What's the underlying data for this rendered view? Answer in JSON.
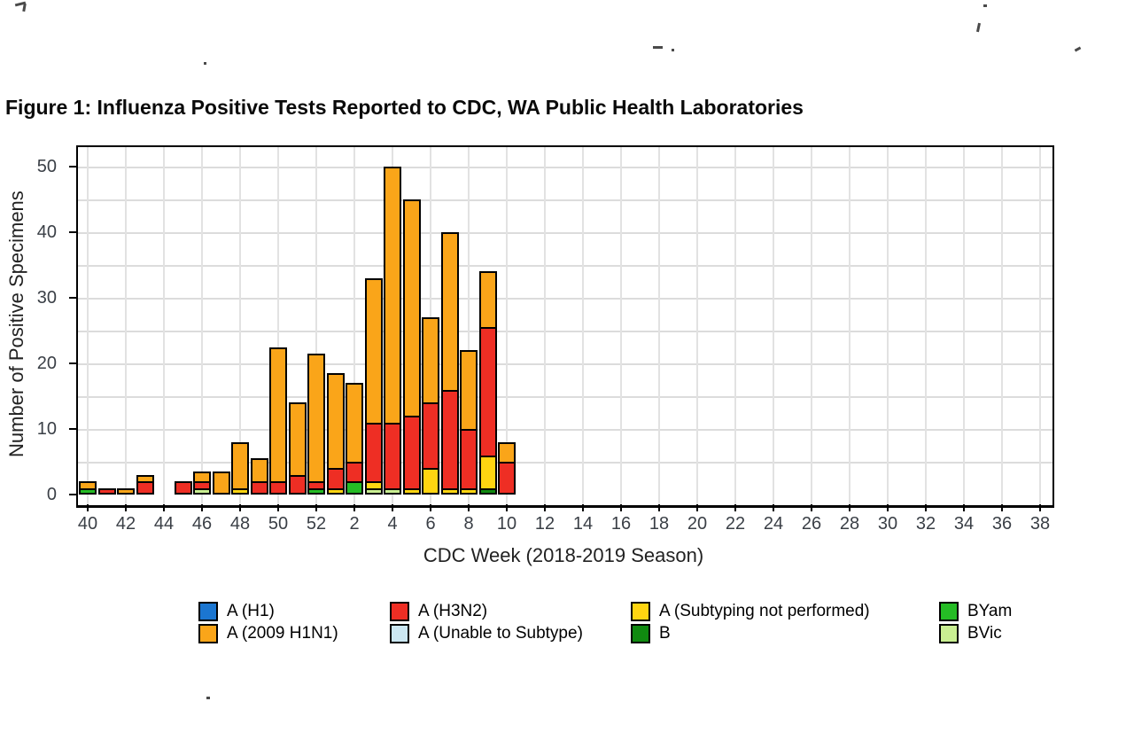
{
  "title": "Figure 1: Influenza Positive Tests Reported to CDC, WA Public Health Laboratories",
  "y_axis": {
    "label": "Number of Positive Specimens",
    "ticks": [
      "0",
      "10",
      "20",
      "30",
      "40",
      "50"
    ]
  },
  "x_axis": {
    "label": "CDC Week (2018-2019 Season)",
    "tick_labels": [
      "40",
      "42",
      "44",
      "46",
      "48",
      "50",
      "52",
      "2",
      "4",
      "6",
      "8",
      "10",
      "12",
      "14",
      "16",
      "18",
      "20",
      "22",
      "24",
      "26",
      "28",
      "30",
      "32",
      "34",
      "36",
      "38"
    ]
  },
  "legend": {
    "columns": [
      {
        "items": [
          {
            "label": "A (H1)",
            "color": "#1b76d1"
          },
          {
            "label": "A (2009 H1N1)",
            "color": "#faa519"
          }
        ]
      },
      {
        "items": [
          {
            "label": "A (H3N2)",
            "color": "#ee2e24"
          },
          {
            "label": "A (Unable to Subtype)",
            "color": "#cbe7f2"
          }
        ]
      },
      {
        "items": [
          {
            "label": "A (Subtyping not performed)",
            "color": "#ffd511"
          },
          {
            "label": "B",
            "color": "#108a10"
          }
        ]
      },
      {
        "items": [
          {
            "label": "BYam",
            "color": "#25bc25"
          },
          {
            "label": "BVic",
            "color": "#c9ef92"
          }
        ]
      }
    ]
  },
  "chart_data": {
    "type": "bar",
    "stacked": true,
    "title": "Figure 1: Influenza Positive Tests Reported to CDC, WA Public Health Laboratories",
    "xlabel": "CDC Week (2018-2019 Season)",
    "ylabel": "Number of Positive Specimens",
    "ylim": [
      0,
      50
    ],
    "grid": true,
    "legend_position": "bottom",
    "week_slots": [
      "40",
      "41",
      "42",
      "43",
      "44",
      "45",
      "46",
      "47",
      "48",
      "49",
      "50",
      "51",
      "52",
      "1",
      "2",
      "3",
      "4",
      "5",
      "6",
      "7",
      "8",
      "9",
      "10",
      "11",
      "12",
      "13",
      "14",
      "15",
      "16",
      "17",
      "18",
      "19",
      "20",
      "21",
      "22",
      "23",
      "24",
      "25",
      "26",
      "27",
      "28",
      "29",
      "30",
      "31",
      "32",
      "33",
      "34",
      "35",
      "36",
      "37",
      "38"
    ],
    "series_colors": {
      "A (H1)": "#1b76d1",
      "A (2009 H1N1)": "#faa519",
      "A (H3N2)": "#ee2e24",
      "A (Unable to Subtype)": "#cbe7f2",
      "A (Subtyping not performed)": "#ffd511",
      "B": "#108a10",
      "BYam": "#25bc25",
      "BVic": "#c9ef92"
    },
    "bars": [
      {
        "week": "40",
        "segments": [
          [
            "BYam",
            1
          ],
          [
            "A (2009 H1N1)",
            1
          ]
        ]
      },
      {
        "week": "41",
        "segments": [
          [
            "A (H3N2)",
            1
          ]
        ]
      },
      {
        "week": "42",
        "segments": [
          [
            "A (2009 H1N1)",
            1
          ]
        ]
      },
      {
        "week": "43",
        "segments": [
          [
            "A (H3N2)",
            2
          ],
          [
            "A (2009 H1N1)",
            1
          ]
        ]
      },
      {
        "week": "45",
        "segments": [
          [
            "A (H3N2)",
            2
          ]
        ]
      },
      {
        "week": "46",
        "segments": [
          [
            "BVic",
            1
          ],
          [
            "A (H3N2)",
            1
          ],
          [
            "A (2009 H1N1)",
            1.5
          ]
        ]
      },
      {
        "week": "47",
        "segments": [
          [
            "A (2009 H1N1)",
            3.5
          ]
        ]
      },
      {
        "week": "48",
        "segments": [
          [
            "A (Subtyping not performed)",
            1
          ],
          [
            "A (2009 H1N1)",
            7
          ]
        ]
      },
      {
        "week": "49",
        "segments": [
          [
            "A (H3N2)",
            2
          ],
          [
            "A (2009 H1N1)",
            3.5
          ]
        ]
      },
      {
        "week": "50",
        "segments": [
          [
            "A (H3N2)",
            2
          ],
          [
            "A (2009 H1N1)",
            20.5
          ]
        ]
      },
      {
        "week": "51",
        "segments": [
          [
            "A (H3N2)",
            3
          ],
          [
            "A (2009 H1N1)",
            11
          ]
        ]
      },
      {
        "week": "52",
        "segments": [
          [
            "BYam",
            1
          ],
          [
            "A (H3N2)",
            1
          ],
          [
            "A (2009 H1N1)",
            19.5
          ]
        ]
      },
      {
        "week": "1",
        "segments": [
          [
            "A (Subtyping not performed)",
            1
          ],
          [
            "A (H3N2)",
            3
          ],
          [
            "A (2009 H1N1)",
            14.5
          ]
        ]
      },
      {
        "week": "2",
        "segments": [
          [
            "BYam",
            2
          ],
          [
            "A (H3N2)",
            3
          ],
          [
            "A (2009 H1N1)",
            12
          ]
        ]
      },
      {
        "week": "3",
        "segments": [
          [
            "BVic",
            1
          ],
          [
            "A (Subtyping not performed)",
            1
          ],
          [
            "A (H3N2)",
            9
          ],
          [
            "A (2009 H1N1)",
            22
          ]
        ]
      },
      {
        "week": "4",
        "segments": [
          [
            "BVic",
            1
          ],
          [
            "A (H3N2)",
            10
          ],
          [
            "A (2009 H1N1)",
            39
          ]
        ]
      },
      {
        "week": "5",
        "segments": [
          [
            "A (Subtyping not performed)",
            1
          ],
          [
            "A (H3N2)",
            11
          ],
          [
            "A (2009 H1N1)",
            33
          ]
        ]
      },
      {
        "week": "6",
        "segments": [
          [
            "A (Subtyping not performed)",
            4
          ],
          [
            "A (H3N2)",
            10
          ],
          [
            "A (2009 H1N1)",
            13
          ]
        ]
      },
      {
        "week": "7",
        "segments": [
          [
            "A (Subtyping not performed)",
            1
          ],
          [
            "A (H3N2)",
            15
          ],
          [
            "A (2009 H1N1)",
            24
          ]
        ]
      },
      {
        "week": "8",
        "segments": [
          [
            "A (Subtyping not performed)",
            1
          ],
          [
            "A (H3N2)",
            9
          ],
          [
            "A (2009 H1N1)",
            12
          ]
        ]
      },
      {
        "week": "9",
        "segments": [
          [
            "B",
            1
          ],
          [
            "A (Subtyping not performed)",
            5
          ],
          [
            "A (H3N2)",
            19.5
          ],
          [
            "A (2009 H1N1)",
            8.5
          ]
        ]
      },
      {
        "week": "10",
        "segments": [
          [
            "A (H3N2)",
            5
          ],
          [
            "A (2009 H1N1)",
            3
          ]
        ]
      }
    ]
  }
}
